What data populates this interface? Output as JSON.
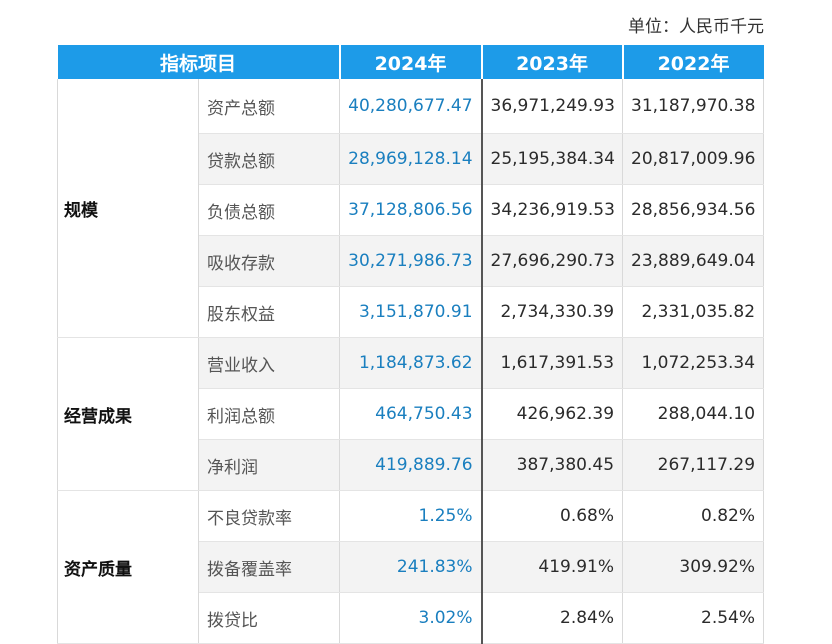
{
  "unit": "单位：人民币千元",
  "header": {
    "item": "指标项目",
    "y2024": "2024年",
    "y2023": "2023年",
    "y2022": "2022年"
  },
  "groups": [
    {
      "category": "规模",
      "rows": [
        {
          "item": "资产总额",
          "y2024": "40,280,677.47",
          "y2023": "36,971,249.93",
          "y2022": "31,187,970.38"
        },
        {
          "item": "贷款总额",
          "y2024": "28,969,128.14",
          "y2023": "25,195,384.34",
          "y2022": "20,817,009.96"
        },
        {
          "item": "负债总额",
          "y2024": "37,128,806.56",
          "y2023": "34,236,919.53",
          "y2022": "28,856,934.56"
        },
        {
          "item": "吸收存款",
          "y2024": "30,271,986.73",
          "y2023": "27,696,290.73",
          "y2022": "23,889,649.04"
        },
        {
          "item": "股东权益",
          "y2024": "3,151,870.91",
          "y2023": "2,734,330.39",
          "y2022": "2,331,035.82"
        }
      ]
    },
    {
      "category": "经营成果",
      "rows": [
        {
          "item": "营业收入",
          "y2024": "1,184,873.62",
          "y2023": "1,617,391.53",
          "y2022": "1,072,253.34"
        },
        {
          "item": "利润总额",
          "y2024": "464,750.43",
          "y2023": "426,962.39",
          "y2022": "288,044.10"
        },
        {
          "item": "净利润",
          "y2024": "419,889.76",
          "y2023": "387,380.45",
          "y2022": "267,117.29"
        }
      ]
    },
    {
      "category": "资产质量",
      "rows": [
        {
          "item": "不良贷款率",
          "y2024": "1.25%",
          "y2023": "0.68%",
          "y2022": "0.82%"
        },
        {
          "item": "拨备覆盖率",
          "y2024": "241.83%",
          "y2023": "419.91%",
          "y2022": "309.92%"
        },
        {
          "item": "拨贷比",
          "y2024": "3.02%",
          "y2023": "2.84%",
          "y2022": "2.54%"
        }
      ]
    }
  ],
  "colors": {
    "header_bg": "#1d9be8",
    "highlight_2024": "#1a7fbf",
    "alt_row": "#f3f3f3"
  }
}
